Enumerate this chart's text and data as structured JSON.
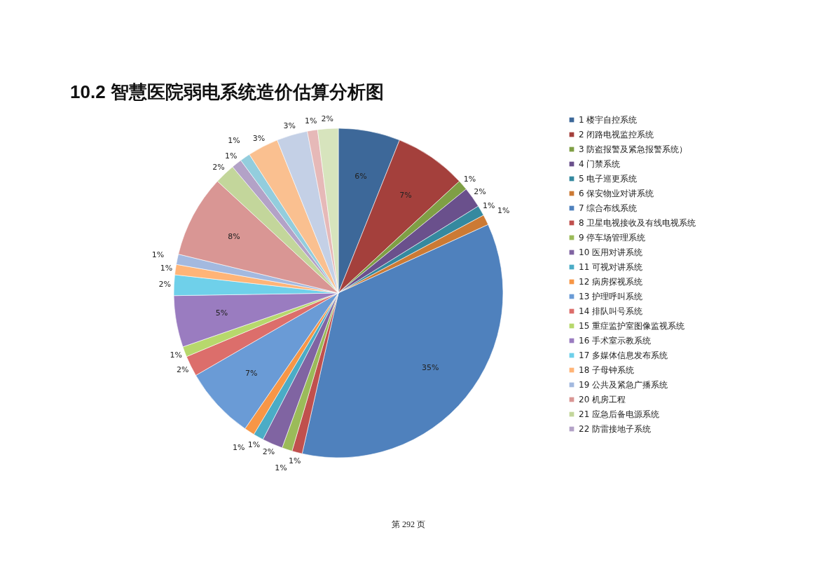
{
  "chart_data": {
    "type": "pie",
    "title": "10.2 智慧医院弱电系统造价估算分析图",
    "categories": [
      "1 楼宇自控系统",
      "2 闭路电视监控系统",
      "3 防盗报警及紧急报警系统）",
      "4 门禁系统",
      "5 电子巡更系统",
      "6 保安物业对讲系统",
      "7 综合布线系统",
      "8 卫星电视接收及有线电视系统",
      "9 停车场管理系统",
      "10 医用对讲系统",
      "11 可视对讲系统",
      "12 病房探视系统",
      "13 护理呼叫系统",
      "14 排队叫号系统",
      "15 重症监护室图像监视系统",
      "16 手术室示教系统",
      "17 多媒体信息发布系统",
      "18 子母钟系统",
      "19 公共及紧急广播系统",
      "20 机房工程",
      "21 应急后备电源系统",
      "22 防雷接地子系统",
      null,
      null,
      null,
      null,
      null
    ],
    "values": [
      6,
      7,
      1,
      2,
      1,
      1,
      35,
      1,
      1,
      2,
      1,
      1,
      7,
      2,
      1,
      5,
      2,
      1,
      1,
      8,
      2,
      1,
      1,
      3,
      3,
      1,
      2
    ],
    "value_labels": [
      "6%",
      "7%",
      "1%",
      "2%",
      "1%",
      "1%",
      "35%",
      "1%",
      "1%",
      "2%",
      "1%",
      "1%",
      "7%",
      "2%",
      "1%",
      "5%",
      "2%",
      "1%",
      "1%",
      "8%",
      "2%",
      "1%",
      "1%",
      "3%",
      "3%",
      "1%",
      "2%"
    ],
    "colors": [
      "#3d6899",
      "#a4403c",
      "#7f9f45",
      "#6a508c",
      "#35899f",
      "#cc7a34",
      "#4f81bd",
      "#c0504d",
      "#9bbb59",
      "#8064a2",
      "#4bacc6",
      "#f79646",
      "#6a9bd6",
      "#dc6e6b",
      "#b7d86c",
      "#9a7cc0",
      "#6fd0ea",
      "#ffb477",
      "#a3b9df",
      "#d99694",
      "#c3d69b",
      "#b3a2c7",
      "#93cddd",
      "#fac090",
      "#c4d0e6",
      "#e6b9b8",
      "#d7e4bd"
    ],
    "legend": "right",
    "annotations": [
      "第 292 页"
    ]
  }
}
